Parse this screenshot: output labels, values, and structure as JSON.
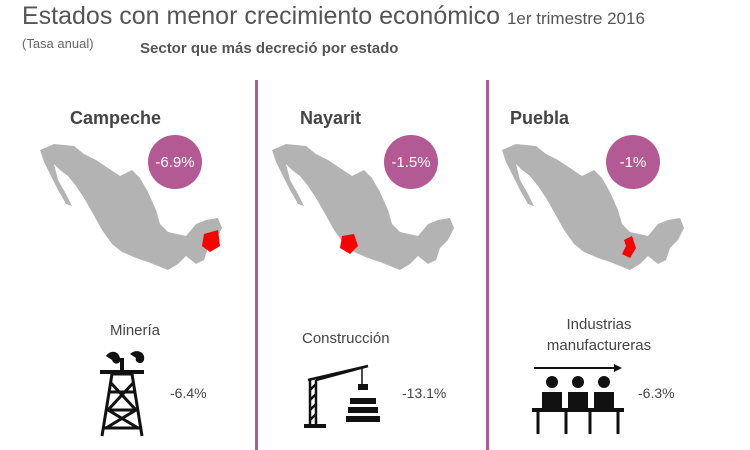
{
  "header": {
    "title": "Estados con menor crecimiento económico",
    "period": "1er trimestre 2016",
    "unit": "(Tasa anual)",
    "section": "Sector que más decreció por estado"
  },
  "colors": {
    "accent": "#b35a94",
    "map": "#b3b3b3",
    "highlight": "#ff0000"
  },
  "states": [
    {
      "name": "Campeche",
      "growth": "-6.9%",
      "sector": "Minería",
      "sector_change": "-6.4%",
      "icon": "oil-rig-icon"
    },
    {
      "name": "Nayarit",
      "growth": "-1.5%",
      "sector": "Construcción",
      "sector_change": "-13.1%",
      "icon": "crane-icon"
    },
    {
      "name": "Puebla",
      "growth": "-1%",
      "sector": "Industrias manufactureras",
      "sector_change": "-6.3%",
      "icon": "workers-icon"
    }
  ]
}
